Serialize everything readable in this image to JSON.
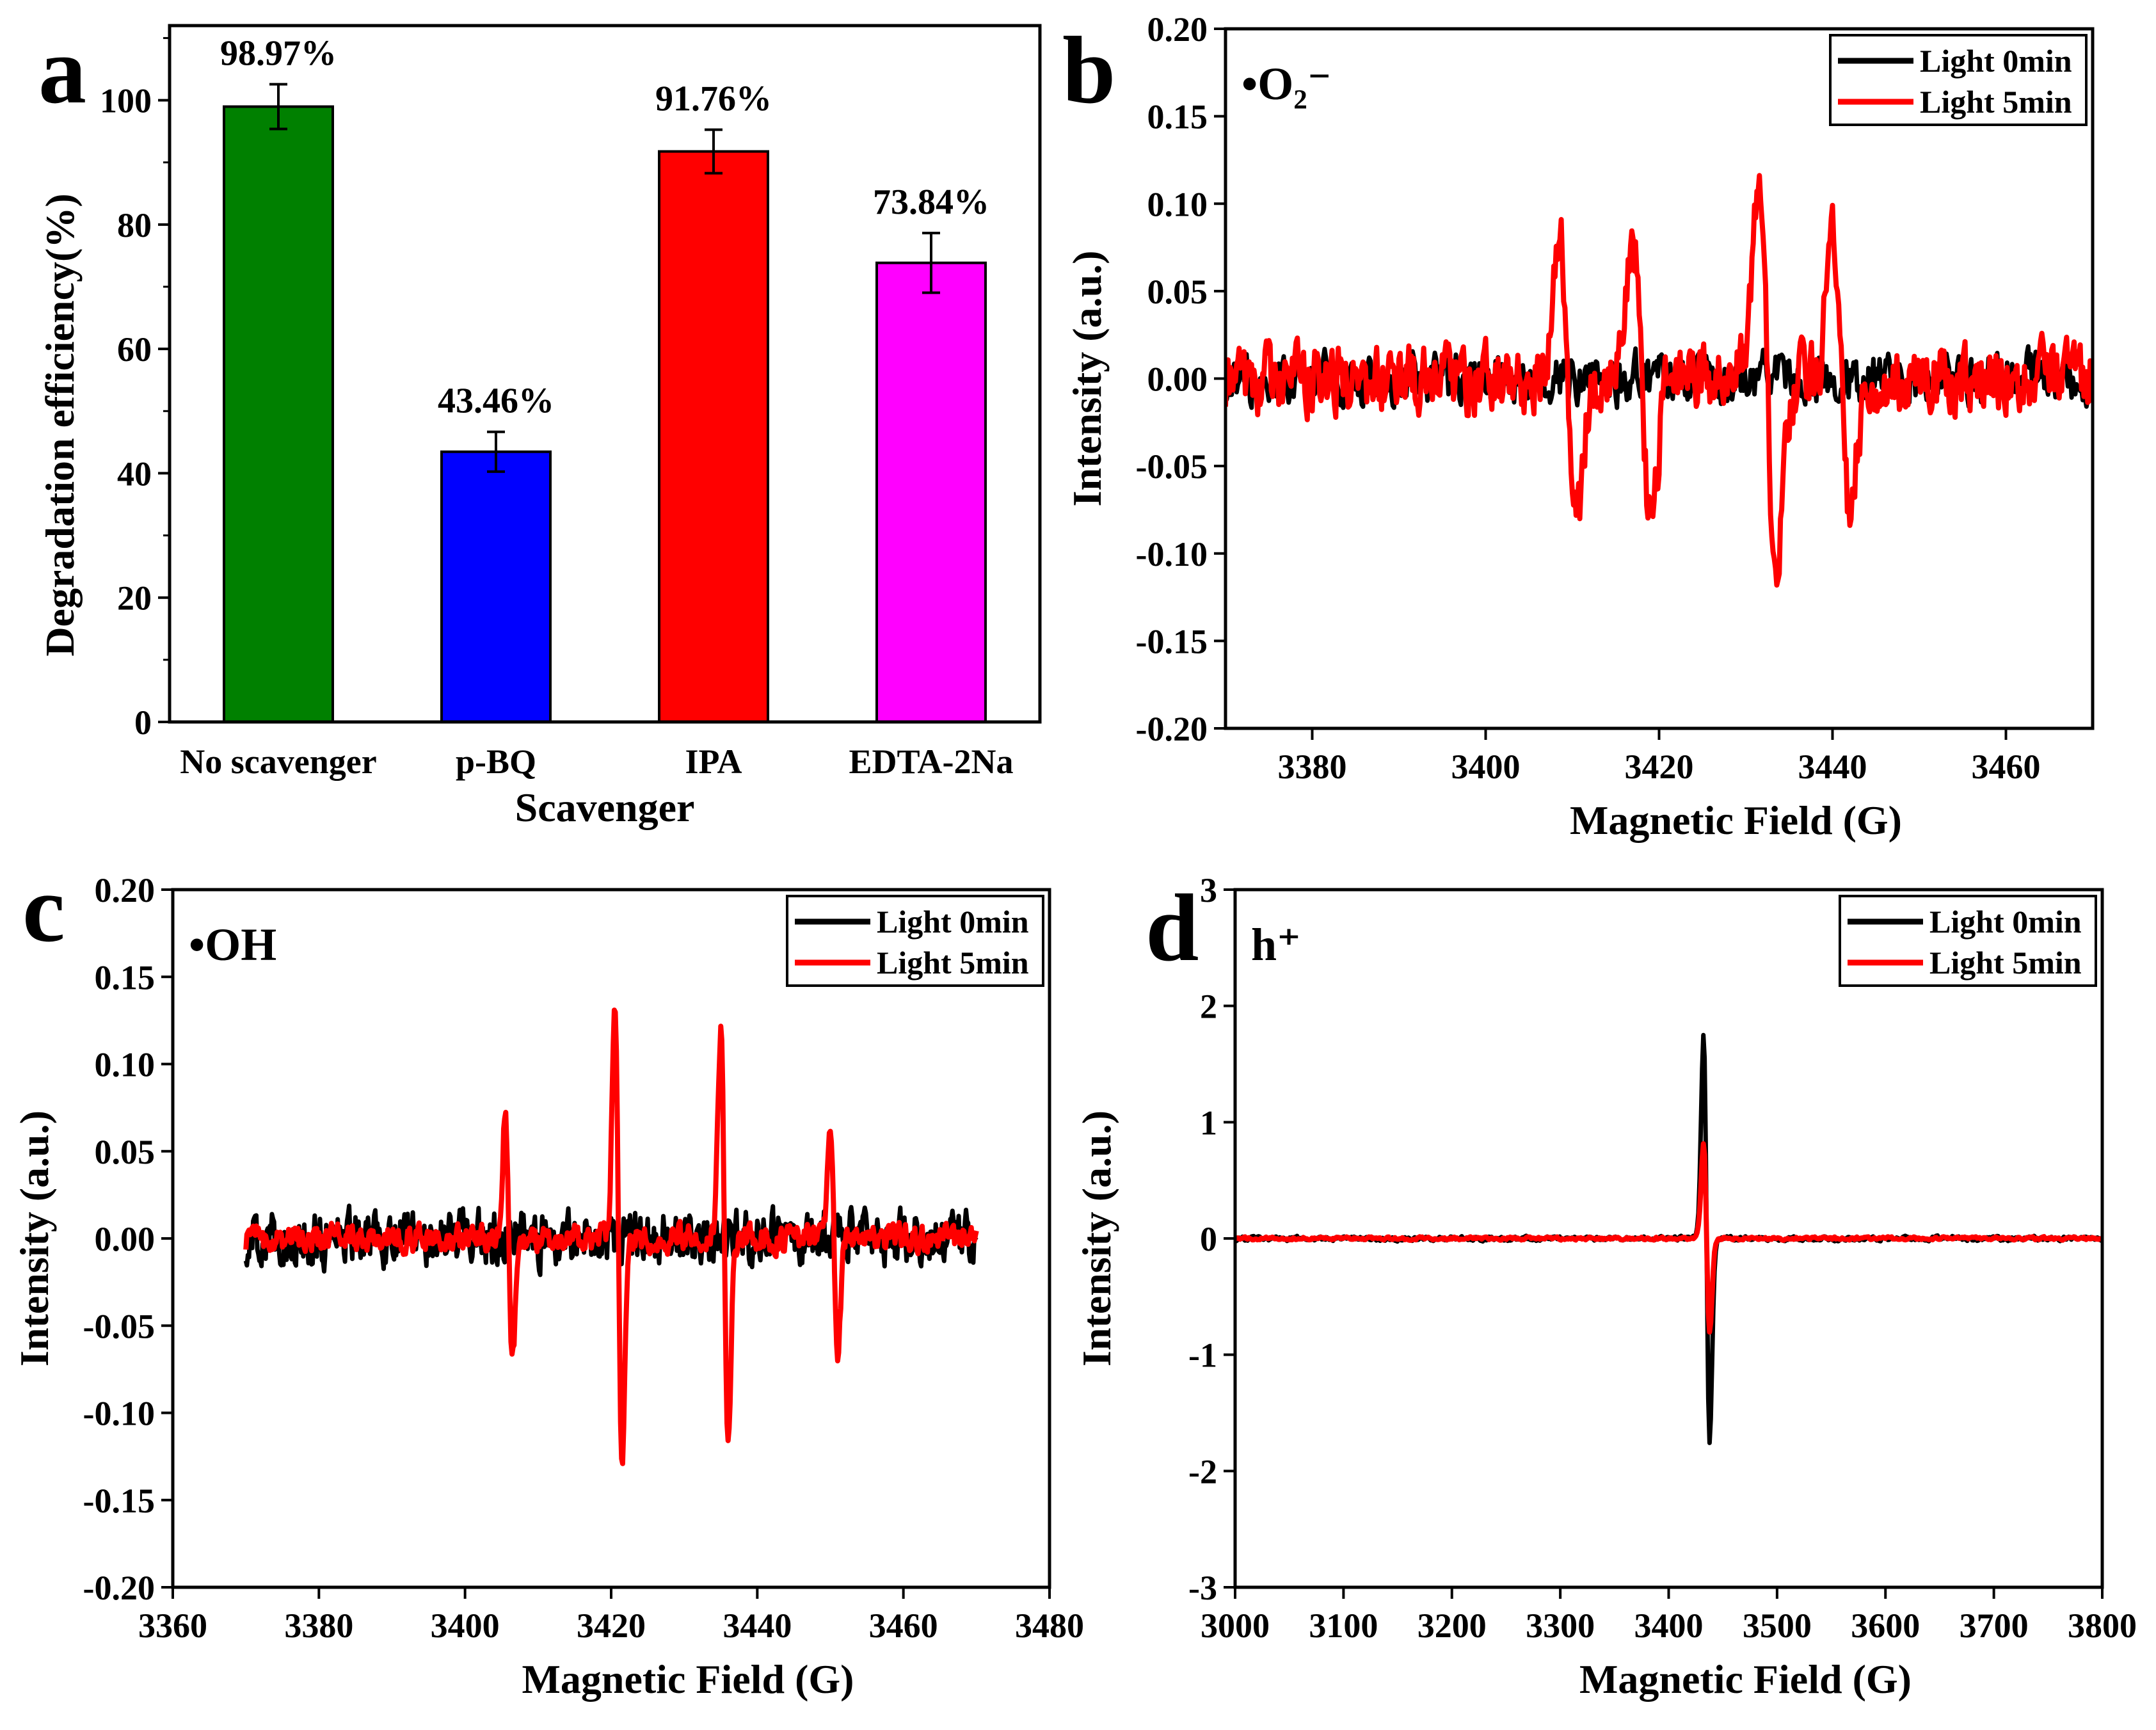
{
  "colors": {
    "no_scavenger": "#008000",
    "p_bq": "#0000ff",
    "ipa": "#ff0000",
    "edta": "#ff00ff",
    "light_0min": "#000000",
    "light_5min": "#ff0000"
  },
  "chart_data": [
    {
      "panel": "a",
      "type": "bar",
      "xlabel": "Scavenger",
      "ylabel": "Degradation efficiency(%)",
      "ylim": [
        0,
        112
      ],
      "yticks": [
        0,
        20,
        40,
        60,
        80,
        100
      ],
      "categories": [
        "No scavenger",
        "p-BQ",
        "IPA",
        "EDTA-2Na"
      ],
      "values": [
        98.97,
        43.46,
        91.76,
        73.84
      ],
      "errors": [
        3.6,
        3.2,
        3.5,
        4.8
      ],
      "value_labels": [
        "98.97%",
        "43.46%",
        "91.76%",
        "73.84%"
      ],
      "bar_colors": [
        "#008000",
        "#0000ff",
        "#ff0000",
        "#ff00ff"
      ]
    },
    {
      "panel": "b",
      "type": "line",
      "species": "•O₂⁻",
      "xlabel": "Magnetic Field (G)",
      "ylabel": "Intensity (a.u.)",
      "xlim": [
        3370,
        3470
      ],
      "ylim": [
        -0.2,
        0.2
      ],
      "xticks": [
        3380,
        3400,
        3420,
        3440,
        3460
      ],
      "yticks": [
        "-0.20",
        "-0.15",
        "-0.10",
        "-0.05",
        "0.00",
        "0.05",
        "0.10",
        "0.15",
        "0.20"
      ],
      "legend_position": "top-right",
      "series": [
        {
          "name": "Light 0min",
          "color": "#000000",
          "noise": 0.022,
          "peaks": []
        },
        {
          "name": "Light 5min",
          "color": "#ff0000",
          "noise": 0.03,
          "peaks": [
            [
              3409.5,
              0.12,
              1.4
            ],
            [
              3418,
              0.11,
              1.4
            ],
            [
              3432.5,
              0.15,
              1.4
            ],
            [
              3441,
              0.11,
              1.4
            ]
          ]
        }
      ]
    },
    {
      "panel": "c",
      "type": "line",
      "species": "•OH",
      "xlabel": "Magnetic Field (G)",
      "ylabel": "Intensity (a.u.)",
      "xlim": [
        3360,
        3480
      ],
      "ylim": [
        -0.2,
        0.2
      ],
      "xticks": [
        3360,
        3380,
        3400,
        3420,
        3440,
        3460,
        3480
      ],
      "yticks": [
        "-0.20",
        "-0.15",
        "-0.10",
        "-0.05",
        "0.00",
        "0.05",
        "0.10",
        "0.15",
        "0.20"
      ],
      "x_range": [
        3370,
        3470
      ],
      "legend_position": "top-right",
      "series": [
        {
          "name": "Light 0min",
          "color": "#000000",
          "noise": 0.024,
          "peaks": []
        },
        {
          "name": "Light 5min",
          "color": "#ff0000",
          "noise": 0.012,
          "peaks": [
            [
              3406,
              0.1,
              0.7
            ],
            [
              3421,
              0.18,
              0.7
            ],
            [
              3435.5,
              0.17,
              0.7
            ],
            [
              3450.5,
              0.09,
              0.7
            ]
          ]
        }
      ]
    },
    {
      "panel": "d",
      "type": "line",
      "species": "h⁺",
      "xlabel": "Magnetic Field (G)",
      "ylabel": "Intensity (a.u.)",
      "xlim": [
        3000,
        3800
      ],
      "ylim": [
        -3,
        3
      ],
      "xticks": [
        3000,
        3100,
        3200,
        3300,
        3400,
        3500,
        3600,
        3700,
        3800
      ],
      "yticks": [
        "-3",
        "-2",
        "-1",
        "0",
        "1",
        "2",
        "3"
      ],
      "legend_position": "top-right",
      "series": [
        {
          "name": "Light 0min",
          "color": "#000000",
          "noise": 0.03,
          "peaks": [
            [
              3435,
              2.5,
              4
            ]
          ]
        },
        {
          "name": "Light 5min",
          "color": "#ff0000",
          "noise": 0.02,
          "peaks": [
            [
              3435,
              1.15,
              4
            ]
          ]
        }
      ]
    }
  ]
}
